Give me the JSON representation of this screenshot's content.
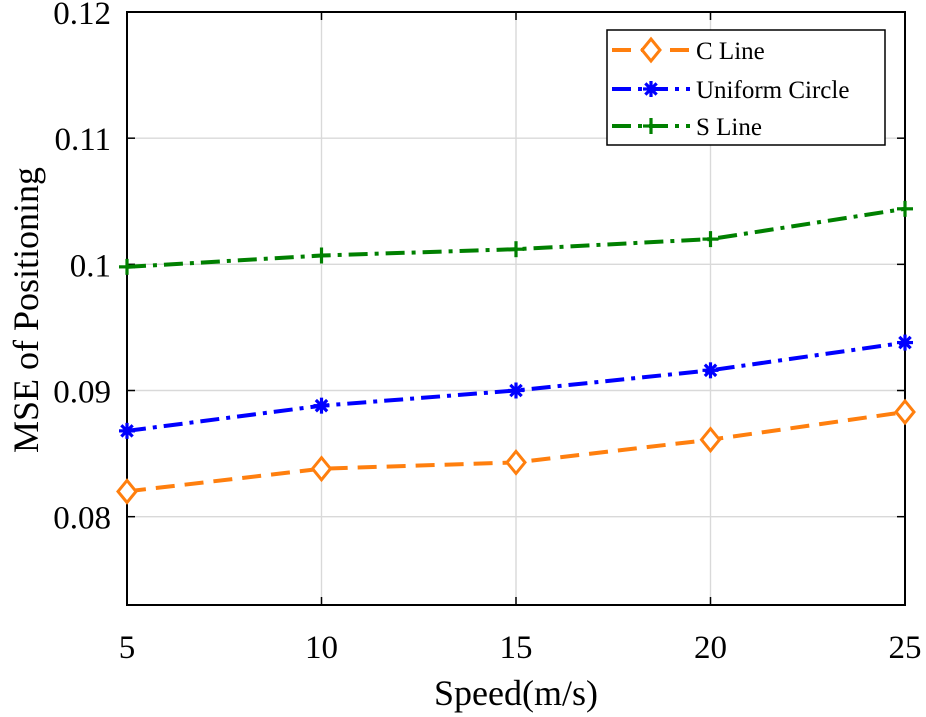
{
  "chart_data": {
    "type": "line",
    "title": "",
    "xlabel": "Speed(m/s)",
    "ylabel": "MSE of Positioning",
    "x": [
      5,
      10,
      15,
      20,
      25
    ],
    "xlim": [
      5,
      25
    ],
    "ylim": [
      0.073,
      0.12
    ],
    "xticks": [
      "5",
      "10",
      "15",
      "20",
      "25"
    ],
    "yticks": [
      "0.08",
      "0.09",
      "0.1",
      "0.11",
      "0.12"
    ],
    "ytick_values": [
      0.08,
      0.09,
      0.1,
      0.11,
      0.12
    ],
    "grid": true,
    "legend_position": "top-right",
    "series": [
      {
        "name": "C Line",
        "values": [
          0.082,
          0.0838,
          0.0843,
          0.0861,
          0.0883
        ],
        "color": "#ff7f0e",
        "line_style": "dashed",
        "marker": "diamond"
      },
      {
        "name": "Uniform Circle",
        "values": [
          0.0868,
          0.0888,
          0.09,
          0.0916,
          0.0938
        ],
        "color": "#0000ff",
        "line_style": "dash-dot",
        "marker": "asterisk"
      },
      {
        "name": "S Line",
        "values": [
          0.0998,
          0.1007,
          0.1012,
          0.102,
          0.1044
        ],
        "color": "#008000",
        "line_style": "dash-dot",
        "marker": "plus"
      }
    ]
  }
}
